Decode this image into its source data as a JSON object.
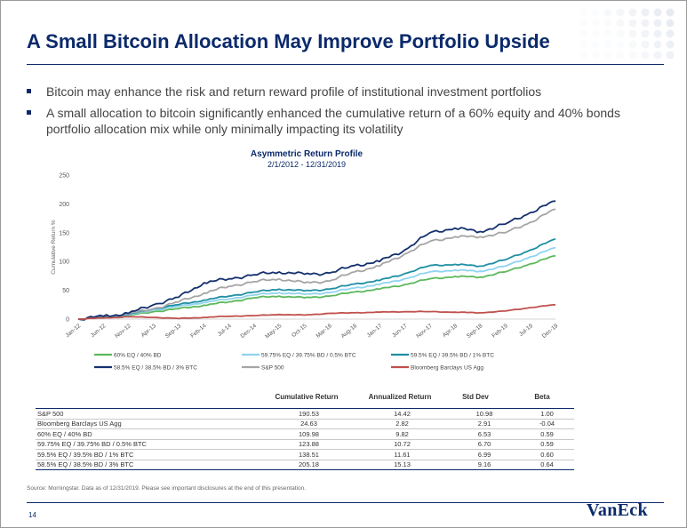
{
  "slide": {
    "title": "A Small Bitcoin Allocation May Improve Portfolio Upside",
    "bullets": [
      "Bitcoin may enhance the risk and return reward profile of institutional investment portfolios",
      "A small allocation to bitcoin significantly enhanced the cumulative return of a 60% equity and 40% bonds portfolio allocation mix while only minimally impacting its volatility"
    ],
    "source": "Source: Morningstar. Data as of 12/31/2019. Please see important disclosures at the end of this presentation.",
    "page_number": "14",
    "logo": "VanEck",
    "accent_color": "#0b2a6b",
    "bullet_icon": "square-bullet-icon"
  },
  "chart_data": {
    "type": "line",
    "title": "Asymmetric Return Profile",
    "subtitle": "2/1/2012 - 12/31/2019",
    "ylabel": "Cumulative Return %",
    "xlabel": "",
    "ylim": [
      0,
      250
    ],
    "yticks": [
      "0",
      "50",
      "100",
      "150",
      "200",
      "250"
    ],
    "grid": false,
    "legend_position": "bottom",
    "x": [
      "Jan-12",
      "Jun-12",
      "Nov-12",
      "Apr-13",
      "Sep-13",
      "Feb-14",
      "Jul-14",
      "Dec-14",
      "May-15",
      "Oct-15",
      "Mar-16",
      "Aug-16",
      "Jan-17",
      "Jun-17",
      "Nov-17",
      "Apr-18",
      "Sep-18",
      "Feb-19",
      "Jul-19",
      "Dec-19"
    ],
    "series": [
      {
        "name": "60% EQ / 40% BD",
        "color": "#5cb85c",
        "values": [
          0,
          4,
          6,
          13,
          18,
          24,
          30,
          37,
          40,
          37,
          40,
          47,
          52,
          60,
          70,
          74,
          73,
          82,
          96,
          110
        ]
      },
      {
        "name": "59.75% EQ / 39.75% BD / 0.5% BTC",
        "color": "#8fd3ef",
        "values": [
          0,
          4,
          7,
          16,
          22,
          29,
          35,
          42,
          46,
          43,
          46,
          54,
          60,
          70,
          82,
          85,
          83,
          92,
          108,
          124
        ]
      },
      {
        "name": "59.5% EQ / 39.5% BD / 1% BTC",
        "color": "#1f8fa3",
        "values": [
          0,
          4,
          8,
          18,
          25,
          33,
          40,
          47,
          52,
          49,
          52,
          61,
          67,
          79,
          93,
          95,
          92,
          103,
          120,
          139
        ]
      },
      {
        "name": "58.5% EQ / 38.5% BD / 3% BTC",
        "color": "#14306e",
        "values": [
          0,
          5,
          10,
          25,
          38,
          63,
          70,
          77,
          82,
          78,
          80,
          93,
          100,
          120,
          150,
          158,
          152,
          165,
          185,
          205
        ]
      },
      {
        "name": "S&P 500",
        "color": "#a5a5a5",
        "values": [
          0,
          5,
          9,
          18,
          30,
          45,
          57,
          65,
          70,
          63,
          66,
          82,
          92,
          113,
          135,
          143,
          143,
          150,
          168,
          191
        ]
      },
      {
        "name": "Bloomberg Barclays US Agg",
        "color": "#c0504d",
        "values": [
          0,
          2,
          4,
          3,
          1,
          3,
          5,
          6,
          8,
          7,
          10,
          11,
          12,
          13,
          13,
          12,
          11,
          14,
          20,
          25
        ]
      }
    ]
  },
  "table": {
    "headers": [
      "Cumulative Return",
      "Annualized Return",
      "Std Dev",
      "Beta"
    ],
    "rows": [
      {
        "name": "S&P 500",
        "values": [
          "190.53",
          "14.42",
          "10.98",
          "1.00"
        ]
      },
      {
        "name": "Bloomberg Barclays US Agg",
        "values": [
          "24.63",
          "2.82",
          "2.91",
          "-0.04"
        ]
      },
      {
        "name": "60% EQ / 40% BD",
        "values": [
          "109.98",
          "9.82",
          "6.53",
          "0.59"
        ]
      },
      {
        "name": "59.75% EQ / 39.75% BD / 0.5% BTC",
        "values": [
          "123.88",
          "10.72",
          "6.70",
          "0.59"
        ]
      },
      {
        "name": "59.5% EQ / 39.5% BD / 1% BTC",
        "values": [
          "138.51",
          "11.61",
          "6.99",
          "0.60"
        ]
      },
      {
        "name": "58.5% EQ / 38.5% BD / 3% BTC",
        "values": [
          "205.18",
          "15.13",
          "9.16",
          "0.64"
        ]
      }
    ]
  }
}
